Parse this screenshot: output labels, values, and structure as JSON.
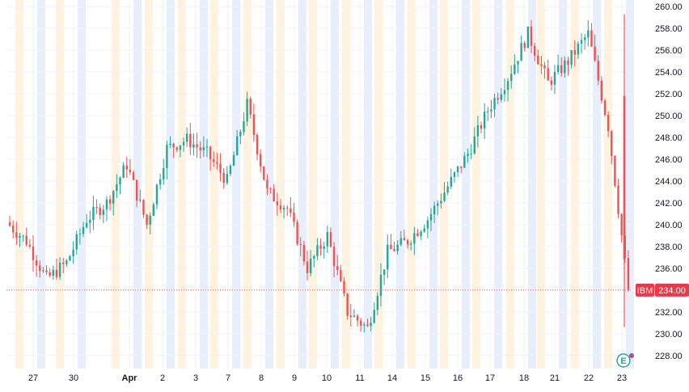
{
  "chart_data": {
    "type": "candlestick",
    "symbol": "IBM",
    "last_price_label": "234.00",
    "last_price": 234.0,
    "ylim": [
      226.8,
      260.6
    ],
    "y_ticks": [
      228,
      230,
      232,
      234,
      236,
      238,
      240,
      242,
      244,
      246,
      248,
      250,
      252,
      254,
      256,
      258,
      260
    ],
    "y_tick_labels": [
      "228.00",
      "230.00",
      "232.00",
      "234.00",
      "236.00",
      "238.00",
      "240.00",
      "242.00",
      "244.00",
      "246.00",
      "248.00",
      "250.00",
      "252.00",
      "254.00",
      "256.00",
      "258.00",
      "260.00"
    ],
    "x_labels": [
      {
        "label": "27",
        "bold": false
      },
      {
        "label": "30",
        "bold": false
      },
      {
        "label": "Apr",
        "bold": true
      },
      {
        "label": "2",
        "bold": false
      },
      {
        "label": "3",
        "bold": false
      },
      {
        "label": "7",
        "bold": false
      },
      {
        "label": "8",
        "bold": false
      },
      {
        "label": "9",
        "bold": false
      },
      {
        "label": "10",
        "bold": false
      },
      {
        "label": "11",
        "bold": false
      },
      {
        "label": "14",
        "bold": false
      },
      {
        "label": "15",
        "bold": false
      },
      {
        "label": "16",
        "bold": false
      },
      {
        "label": "17",
        "bold": false
      },
      {
        "label": "18",
        "bold": false
      },
      {
        "label": "21",
        "bold": false
      },
      {
        "label": "22",
        "bold": false
      },
      {
        "label": "23",
        "bold": false
      }
    ],
    "grid": true,
    "colors": {
      "up": "#26a69a",
      "down": "#ef5350",
      "last_price_line": "#ef5350",
      "badge": "#f23645",
      "session_pre": "#fff3e0",
      "session_post": "#e8eefb",
      "axis_text": "#131722"
    },
    "day_closes": [
      240.2,
      238.5,
      235.0,
      236.5,
      240.5,
      242.0,
      245.5,
      240.0,
      247.0,
      247.8,
      246.5,
      244.0,
      251.0,
      243.0,
      241.5,
      236.0,
      239.0,
      232.0,
      230.5,
      237.5,
      238.5,
      240.5,
      243.5,
      246.5,
      250.5,
      253.5,
      257.5,
      253.0,
      255.0,
      257.5,
      249.0,
      234.0
    ]
  },
  "icon_badge": "E"
}
